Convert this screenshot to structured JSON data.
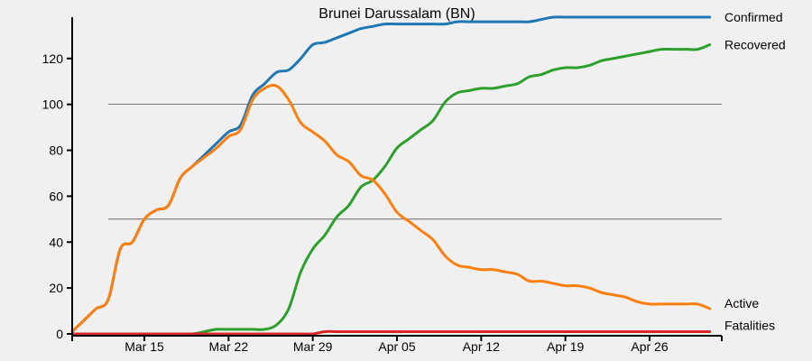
{
  "chart_data": {
    "type": "line",
    "title": "Brunei Darussalam (BN)",
    "xlabel": "",
    "ylabel": "",
    "x_start": "2020-03-09",
    "x_ticks": [
      {
        "date": "2020-03-15",
        "label": "Mar 15"
      },
      {
        "date": "2020-03-22",
        "label": "Mar 22"
      },
      {
        "date": "2020-03-29",
        "label": "Mar 29"
      },
      {
        "date": "2020-04-05",
        "label": "Apr 05"
      },
      {
        "date": "2020-04-12",
        "label": "Apr 12"
      },
      {
        "date": "2020-04-19",
        "label": "Apr 19"
      },
      {
        "date": "2020-04-26",
        "label": "Apr 26"
      }
    ],
    "xlim": [
      "2020-03-09",
      "2020-05-02"
    ],
    "ylim": [
      0,
      138
    ],
    "y_ticks": [
      0,
      20,
      40,
      60,
      80,
      100,
      120
    ],
    "gridlines": [
      50,
      100
    ],
    "series": [
      {
        "name": "Confirmed",
        "color": "#1f77b4",
        "values": [
          1,
          6,
          11,
          15,
          37,
          40,
          50,
          54,
          56,
          68,
          73,
          78,
          83,
          88,
          91,
          104,
          109,
          114,
          115,
          120,
          126,
          127,
          129,
          131,
          133,
          134,
          135,
          135,
          135,
          135,
          135,
          135,
          136,
          136,
          136,
          136,
          136,
          136,
          136,
          137,
          138,
          138,
          138,
          138,
          138,
          138,
          138,
          138,
          138,
          138,
          138,
          138,
          138,
          138
        ]
      },
      {
        "name": "Recovered",
        "color": "#2ca02c",
        "values": [
          0,
          0,
          0,
          0,
          0,
          0,
          0,
          0,
          0,
          0,
          0,
          1,
          2,
          2,
          2,
          2,
          2,
          4,
          11,
          27,
          37,
          43,
          51,
          56,
          64,
          67,
          73,
          81,
          85,
          89,
          93,
          101,
          105,
          106,
          107,
          107,
          108,
          109,
          112,
          113,
          115,
          116,
          116,
          117,
          119,
          120,
          121,
          122,
          123,
          124,
          124,
          124,
          124,
          126
        ]
      },
      {
        "name": "Active",
        "color": "#ff7f0e",
        "values": [
          1,
          6,
          11,
          15,
          37,
          40,
          50,
          54,
          56,
          68,
          73,
          77,
          81,
          86,
          89,
          102,
          107,
          108,
          102,
          92,
          88,
          84,
          78,
          75,
          69,
          67,
          61,
          53,
          49,
          45,
          41,
          34,
          30,
          29,
          28,
          28,
          27,
          26,
          23,
          23,
          22,
          21,
          21,
          20,
          18,
          17,
          16,
          14,
          13,
          13,
          13,
          13,
          13,
          11
        ]
      },
      {
        "name": "Fatalities",
        "color": "#d62728",
        "values": [
          0,
          0,
          0,
          0,
          0,
          0,
          0,
          0,
          0,
          0,
          0,
          0,
          0,
          0,
          0,
          0,
          0,
          0,
          0,
          0,
          0,
          1,
          1,
          1,
          1,
          1,
          1,
          1,
          1,
          1,
          1,
          1,
          1,
          1,
          1,
          1,
          1,
          1,
          1,
          1,
          1,
          1,
          1,
          1,
          1,
          1,
          1,
          1,
          1,
          1,
          1,
          1,
          1,
          1
        ]
      }
    ]
  }
}
